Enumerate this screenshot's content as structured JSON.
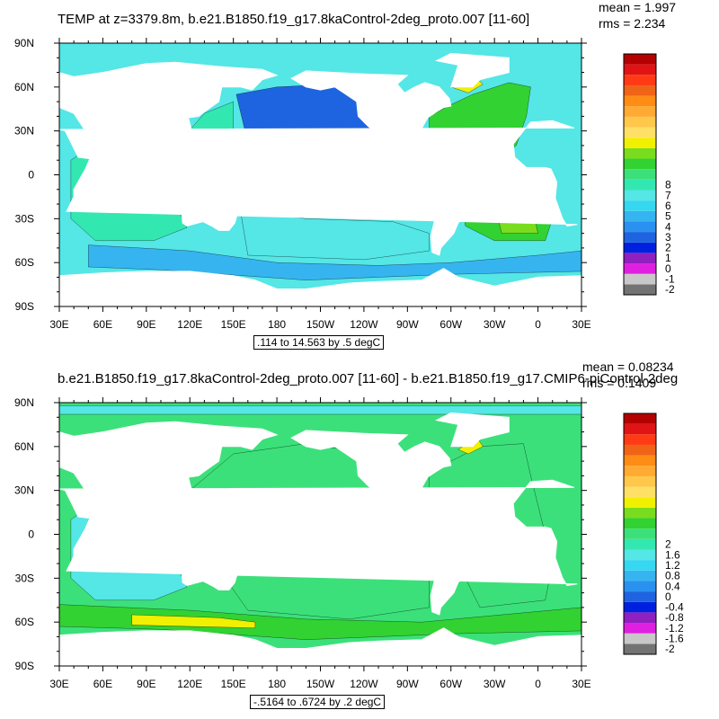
{
  "panels": [
    {
      "title": "TEMP at z=3379.8m, b.e21.B1850.f19_g17.8kaControl-2deg_proto.007 [11-60]",
      "stats": {
        "mean": "mean = 1.997",
        "rms": "rms = 2.234"
      },
      "contour_info": ".114 to 14.563 by .5 degC"
    },
    {
      "title": "b.e21.B1850.f19_g17.8kaControl-2deg_proto.007 [11-60] - b.e21.B1850.f19_g17.CMIP6-piControl-2deg",
      "stats": {
        "mean": "mean = 0.08234",
        "rms": "rms = 0.1409"
      },
      "contour_info": "-.5164 to .6724 by .2 degC"
    }
  ],
  "chart_data": [
    {
      "type": "heatmap",
      "title": "TEMP at z=3379.8m, b.e21.B1850.f19_g17.8kaControl-2deg_proto.007 [11-60]",
      "xlabel": "",
      "ylabel": "",
      "xlim": [
        30,
        390
      ],
      "ylim": [
        -90,
        90
      ],
      "x_ticks": [
        "30E",
        "60E",
        "90E",
        "120E",
        "150E",
        "180",
        "150W",
        "120W",
        "90W",
        "60W",
        "30W",
        "0",
        "30E"
      ],
      "y_ticks": [
        "90S",
        "60S",
        "30S",
        "0",
        "30N",
        "60N",
        "90N"
      ],
      "colorbar": {
        "labels": [
          "-2",
          "-1",
          "0",
          "1",
          "2",
          "3",
          "4",
          "5",
          "6",
          "7",
          "8"
        ],
        "colors": [
          "#737373",
          "#c8c8c8",
          "#e020e0",
          "#9020c0",
          "#0020e0",
          "#1e64e0",
          "#2b91f0",
          "#36b4f0",
          "#36d7f0",
          "#55e6e6",
          "#33e8b0",
          "#3ce07a",
          "#32d232",
          "#7adc1e",
          "#f0f000",
          "#ffe066",
          "#ffc84a",
          "#ffaa32",
          "#ff8c14",
          "#f06418",
          "#ff3a14",
          "#e01414",
          "#b40000"
        ]
      },
      "stats": {
        "mean": 1.997,
        "rms": 2.234
      },
      "contour_info": ".114 to 14.563 by .5 degC"
    },
    {
      "type": "heatmap",
      "title": "b.e21.B1850.f19_g17.8kaControl-2deg_proto.007 [11-60] - b.e21.B1850.f19_g17.CMIP6-piControl-2deg",
      "xlabel": "",
      "ylabel": "",
      "xlim": [
        30,
        390
      ],
      "ylim": [
        -90,
        90
      ],
      "x_ticks": [
        "30E",
        "60E",
        "90E",
        "120E",
        "150E",
        "180",
        "150W",
        "120W",
        "90W",
        "60W",
        "30W",
        "0",
        "30E"
      ],
      "y_ticks": [
        "90S",
        "60S",
        "30S",
        "0",
        "30N",
        "60N",
        "90N"
      ],
      "colorbar": {
        "labels": [
          "-2",
          "-1.6",
          "-1.2",
          "-0.8",
          "-0.4",
          "0",
          "0.4",
          "0.8",
          "1.2",
          "1.6",
          "2"
        ],
        "colors": [
          "#737373",
          "#c8c8c8",
          "#e020e0",
          "#9020c0",
          "#0020e0",
          "#1e64e0",
          "#2b91f0",
          "#36b4f0",
          "#36d7f0",
          "#55e6e6",
          "#33e8b0",
          "#3ce07a",
          "#32d232",
          "#7adc1e",
          "#f0f000",
          "#ffe066",
          "#ffc84a",
          "#ffaa32",
          "#ff8c14",
          "#f06418",
          "#ff3a14",
          "#e01414",
          "#b40000"
        ]
      },
      "stats": {
        "mean": 0.08234,
        "rms": 0.1409
      },
      "contour_info": "-.5164 to .6724 by .2 degC"
    }
  ]
}
